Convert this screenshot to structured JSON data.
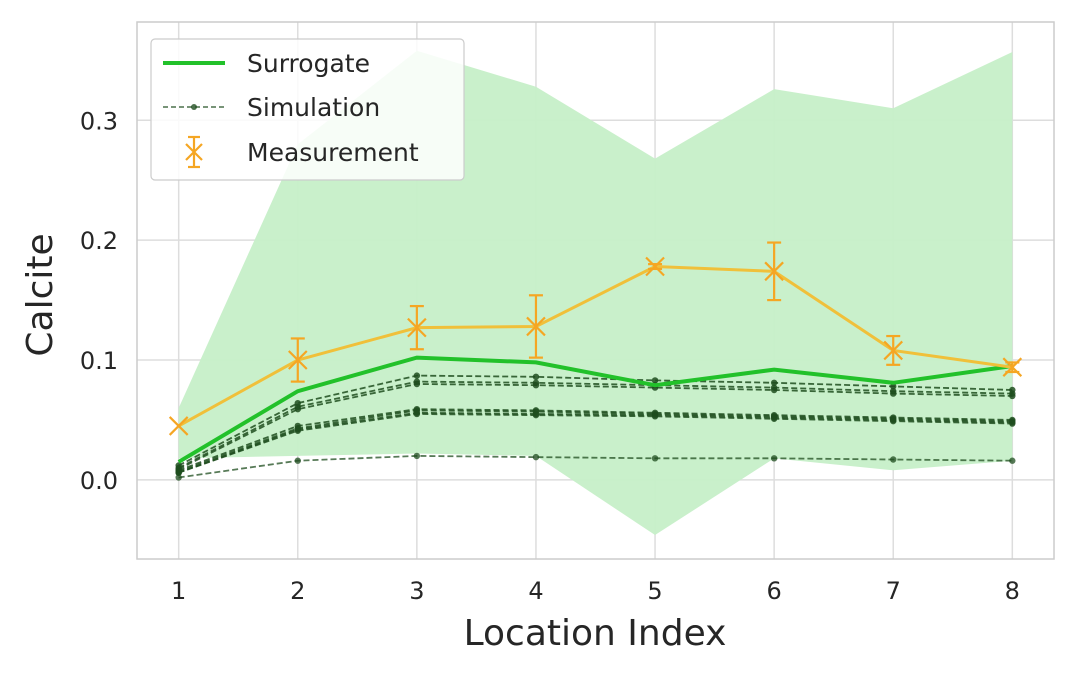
{
  "chart_data": {
    "type": "line",
    "xlabel": "Location Index",
    "ylabel": "Calcite",
    "x": [
      1,
      2,
      3,
      4,
      5,
      6,
      7,
      8
    ],
    "xlim": [
      0.65,
      8.35
    ],
    "ylim": [
      -0.066,
      0.382
    ],
    "xticks": [
      "1",
      "2",
      "3",
      "4",
      "5",
      "6",
      "7",
      "8"
    ],
    "yticks": [
      0.0,
      0.1,
      0.2,
      0.3
    ],
    "ytick_labels": [
      "0.0",
      "0.1",
      "0.2",
      "0.3"
    ],
    "grid": true,
    "legend": {
      "placement": "top-left",
      "entries": [
        "Surrogate",
        "Simulation",
        "Measurement"
      ]
    },
    "colors": {
      "surrogate": "#22c12a",
      "band": "#c6efc8",
      "simulation": "#1f4d1f",
      "measurement": "#f5a623",
      "measurement_line": "#f0c03a"
    },
    "surrogate": {
      "name": "Surrogate",
      "values": [
        0.015,
        0.074,
        0.102,
        0.098,
        0.079,
        0.092,
        0.081,
        0.095
      ],
      "band_lower": [
        0.018,
        0.02,
        0.022,
        0.02,
        -0.046,
        0.018,
        0.008,
        0.016
      ],
      "band_upper": [
        0.06,
        0.28,
        0.358,
        0.328,
        0.268,
        0.326,
        0.31,
        0.357
      ]
    },
    "simulation": {
      "name": "Simulation",
      "series": [
        [
          0.012,
          0.064,
          0.087,
          0.086,
          0.083,
          0.081,
          0.078,
          0.075
        ],
        [
          0.01,
          0.061,
          0.082,
          0.081,
          0.079,
          0.077,
          0.074,
          0.072
        ],
        [
          0.009,
          0.059,
          0.08,
          0.079,
          0.077,
          0.075,
          0.072,
          0.07
        ],
        [
          0.008,
          0.045,
          0.059,
          0.058,
          0.056,
          0.054,
          0.052,
          0.05
        ],
        [
          0.007,
          0.043,
          0.058,
          0.057,
          0.055,
          0.053,
          0.051,
          0.049
        ],
        [
          0.006,
          0.042,
          0.056,
          0.055,
          0.054,
          0.052,
          0.05,
          0.048
        ],
        [
          0.006,
          0.041,
          0.055,
          0.054,
          0.053,
          0.051,
          0.049,
          0.047
        ],
        [
          0.002,
          0.016,
          0.02,
          0.019,
          0.018,
          0.018,
          0.017,
          0.016
        ]
      ]
    },
    "measurement": {
      "name": "Measurement",
      "values": [
        0.045,
        0.1,
        0.127,
        0.128,
        0.178,
        0.174,
        0.108,
        0.094
      ],
      "error": [
        0.0,
        0.018,
        0.018,
        0.026,
        0.002,
        0.024,
        0.012,
        0.004
      ]
    }
  }
}
